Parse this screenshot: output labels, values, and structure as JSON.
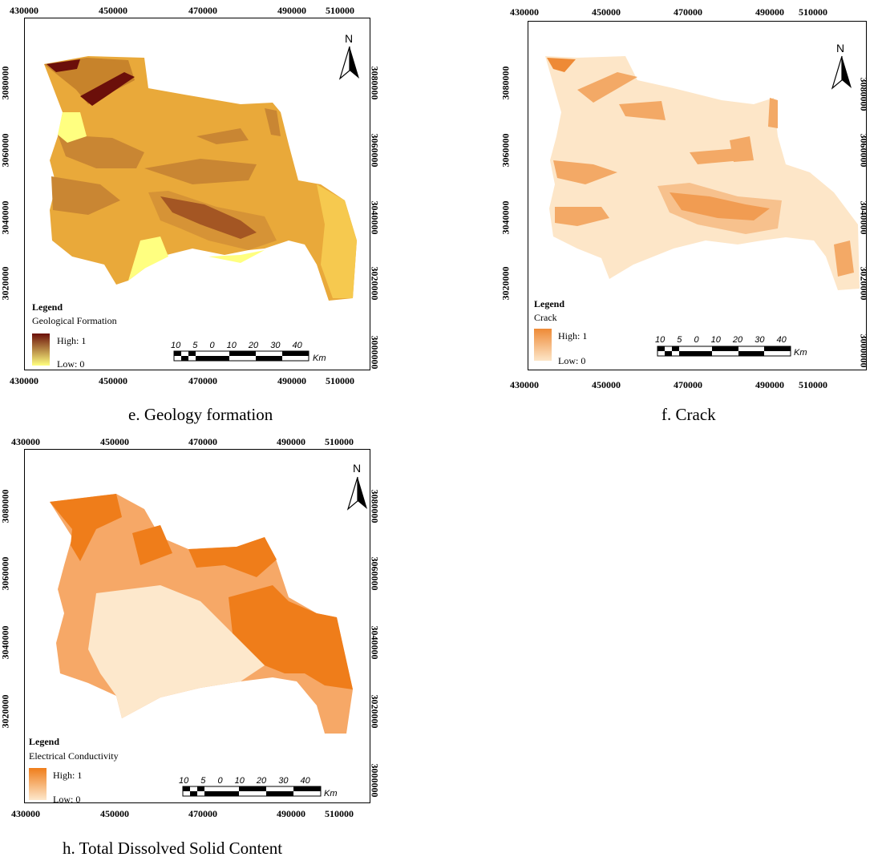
{
  "panels": [
    {
      "id": "e",
      "caption": "e. Geology formation",
      "x_ticks": [
        "430000",
        "450000",
        "470000",
        "490000",
        "510000"
      ],
      "y_ticks": [
        "3080000",
        "3060000",
        "3040000",
        "3020000"
      ],
      "y_ticks_right": [
        "3080000",
        "3060000",
        "3040000",
        "3020000",
        "3000000"
      ],
      "legend_title": "Legend",
      "legend_layer": "Geological Formation",
      "legend_high": "High: 1",
      "legend_low": "Low: 0",
      "legend_colors": [
        "#6b0f0a",
        "#ffff80"
      ],
      "scale_labels": "10 5 0 10 20 30 40",
      "scale_unit": "Km",
      "north": "N"
    },
    {
      "id": "f",
      "caption": "f. Crack",
      "x_ticks": [
        "430000",
        "450000",
        "470000",
        "490000",
        "510000"
      ],
      "y_ticks": [
        "3080000",
        "3060000",
        "3040000",
        "3020000"
      ],
      "y_ticks_right": [
        "3080000",
        "3060000",
        "3040000",
        "3020000",
        "3000000"
      ],
      "legend_title": "Legend",
      "legend_layer": "Crack",
      "legend_high": "High: 1",
      "legend_low": "Low: 0",
      "legend_colors": [
        "#ee8a36",
        "#fde6c8"
      ],
      "scale_labels": "10 5 0 10 20 30 40",
      "scale_unit": "Km",
      "north": "N"
    },
    {
      "id": "h",
      "caption": "h. Total Dissolved Solid Content",
      "x_ticks": [
        "430000",
        "450000",
        "470000",
        "490000",
        "510000"
      ],
      "y_ticks": [
        "3080000",
        "3060000",
        "3040000",
        "3020000"
      ],
      "y_ticks_right": [
        "3080000",
        "3060000",
        "3040000",
        "3020000",
        "3000000"
      ],
      "legend_title": "Legend",
      "legend_layer": "Electrical Conductivity",
      "legend_high": "High: 1",
      "legend_low": "Low: 0",
      "legend_colors": [
        "#ef7d1a",
        "#fde8cc"
      ],
      "scale_labels": "10 5 0 10 20 30 40",
      "scale_unit": "Km",
      "north": "N"
    }
  ]
}
